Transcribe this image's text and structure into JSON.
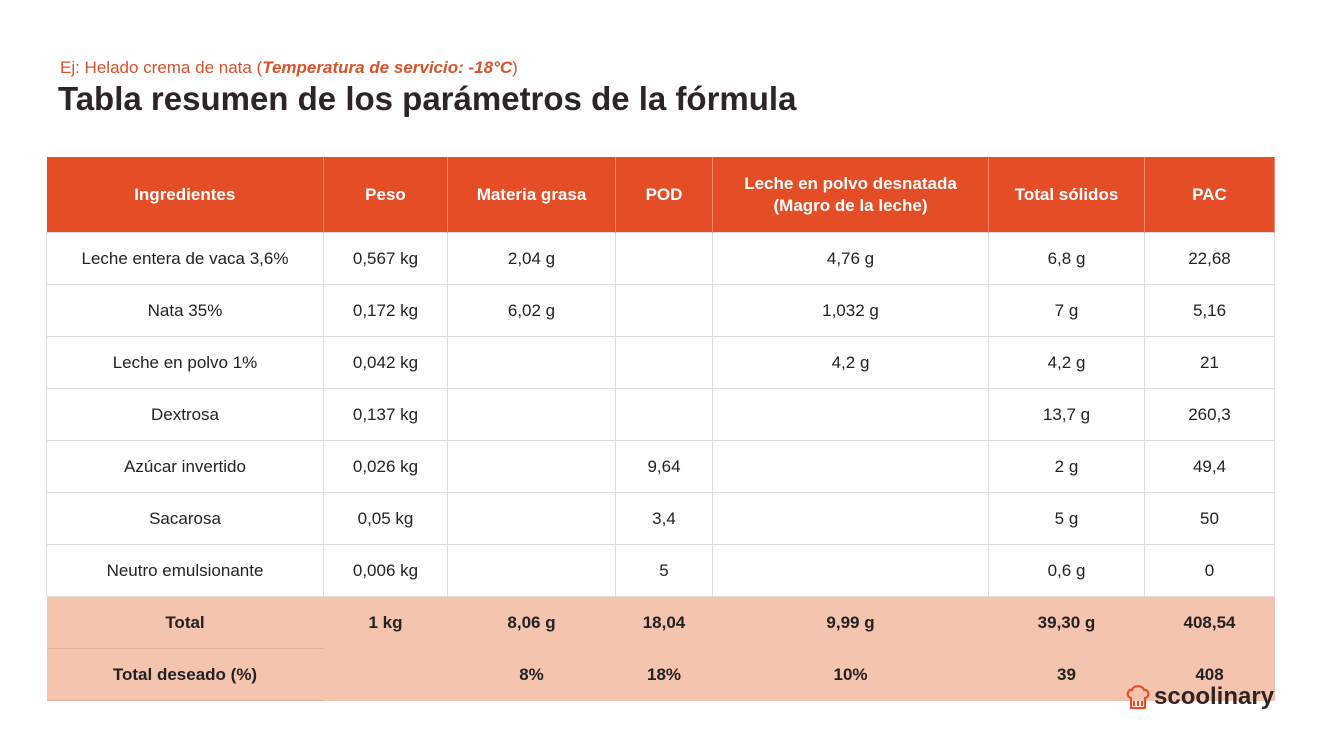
{
  "subtitle_prefix": "Ej: Helado crema de nata (",
  "subtitle_emph": "Temperatura de servicio: -18°C",
  "subtitle_suffix": ")",
  "title": "Tabla resumen de los parámetros de la fórmula",
  "headers": [
    "Ingredientes",
    "Peso",
    "Materia grasa",
    "POD",
    "Leche en polvo desnatada (Magro de  la leche)",
    "Total sólidos",
    "PAC"
  ],
  "rows": [
    [
      "Leche entera de vaca 3,6%",
      "0,567 kg",
      "2,04 g",
      "",
      "4,76 g",
      "6,8 g",
      "22,68"
    ],
    [
      "Nata 35%",
      "0,172 kg",
      "6,02 g",
      "",
      "1,032 g",
      "7 g",
      "5,16"
    ],
    [
      "Leche en polvo 1%",
      "0,042 kg",
      "",
      "",
      "4,2 g",
      "4,2 g",
      "21"
    ],
    [
      "Dextrosa",
      "0,137 kg",
      "",
      "",
      "",
      "13,7 g",
      "260,3"
    ],
    [
      "Azúcar invertido",
      "0,026 kg",
      "",
      "9,64",
      "",
      "2 g",
      "49,4"
    ],
    [
      "Sacarosa",
      "0,05 kg",
      "",
      "3,4",
      "",
      "5 g",
      "50"
    ],
    [
      "Neutro emulsionante",
      "0,006 kg",
      "",
      "5",
      "",
      "0,6 g",
      "0"
    ]
  ],
  "totals": [
    [
      "Total",
      "1 kg",
      "8,06 g",
      "18,04",
      "9,99 g",
      "39,30 g",
      "408,54"
    ],
    [
      "Total deseado (%)",
      "",
      "8%",
      "18%",
      "10%",
      "39",
      "408"
    ]
  ],
  "logo": "scoolinary",
  "colors": {
    "accent": "#e54d26",
    "total_bg": "#f5c4ae"
  }
}
